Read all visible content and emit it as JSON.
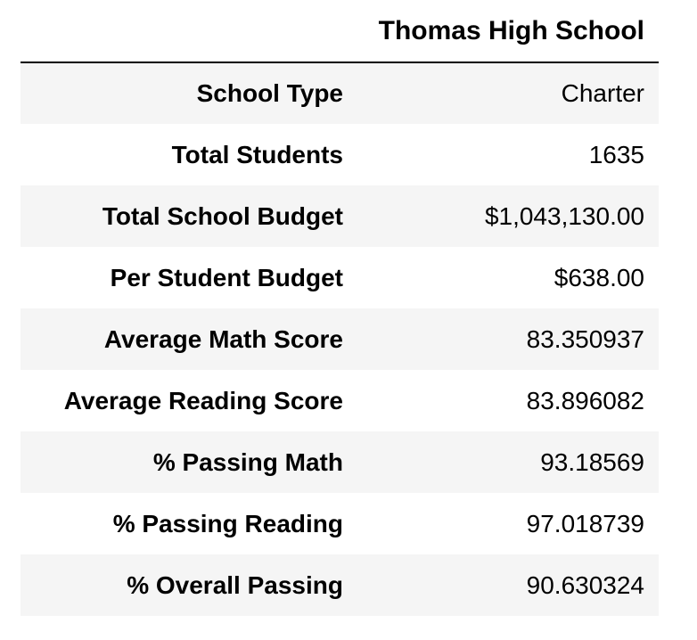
{
  "table": {
    "corner_header": "",
    "column_header": "Thomas High School",
    "rows": [
      {
        "label": "School Type",
        "value": "Charter"
      },
      {
        "label": "Total Students",
        "value": "1635"
      },
      {
        "label": "Total School Budget",
        "value": "$1,043,130.00"
      },
      {
        "label": "Per Student Budget",
        "value": "$638.00"
      },
      {
        "label": "Average Math Score",
        "value": "83.350937"
      },
      {
        "label": "Average Reading Score",
        "value": "83.896082"
      },
      {
        "label": "% Passing Math",
        "value": "93.18569"
      },
      {
        "label": "% Passing Reading",
        "value": "97.018739"
      },
      {
        "label": "% Overall Passing",
        "value": "90.630324"
      }
    ]
  }
}
